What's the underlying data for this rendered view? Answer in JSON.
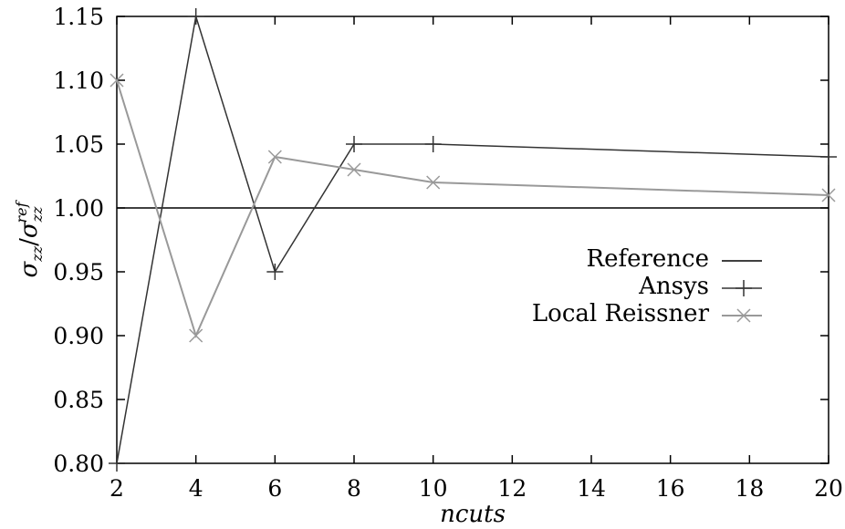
{
  "chart_data": {
    "type": "line",
    "title": "",
    "xlabel": "ncuts",
    "ylabel": "σ_zz / σ_zz^ref",
    "ylabel_parts": {
      "sigma": "σ",
      "sub": "zz",
      "slash": "/",
      "sup": "ref"
    },
    "x_ticks": [
      2,
      4,
      6,
      8,
      10,
      12,
      14,
      16,
      18,
      20
    ],
    "y_ticks": [
      "0.80",
      "0.85",
      "0.90",
      "0.95",
      "1.00",
      "1.05",
      "1.10",
      "1.15"
    ],
    "xlim": [
      2,
      20
    ],
    "ylim": [
      0.8,
      1.15
    ],
    "grid": false,
    "legend_position": "right",
    "series": [
      {
        "name": "Reference",
        "color": "#000000",
        "marker": "none",
        "x": [
          2,
          20
        ],
        "y": [
          1.0,
          1.0
        ]
      },
      {
        "name": "Ansys",
        "color": "#333333",
        "marker": "plus",
        "x": [
          2,
          4,
          6,
          8,
          10,
          20
        ],
        "y": [
          0.8,
          1.15,
          0.95,
          1.05,
          1.05,
          1.04
        ]
      },
      {
        "name": "Local Reissner",
        "color": "#999999",
        "marker": "cross",
        "x": [
          2,
          4,
          6,
          8,
          10,
          20
        ],
        "y": [
          1.1,
          0.9,
          1.04,
          1.03,
          1.02,
          1.01
        ]
      }
    ]
  }
}
